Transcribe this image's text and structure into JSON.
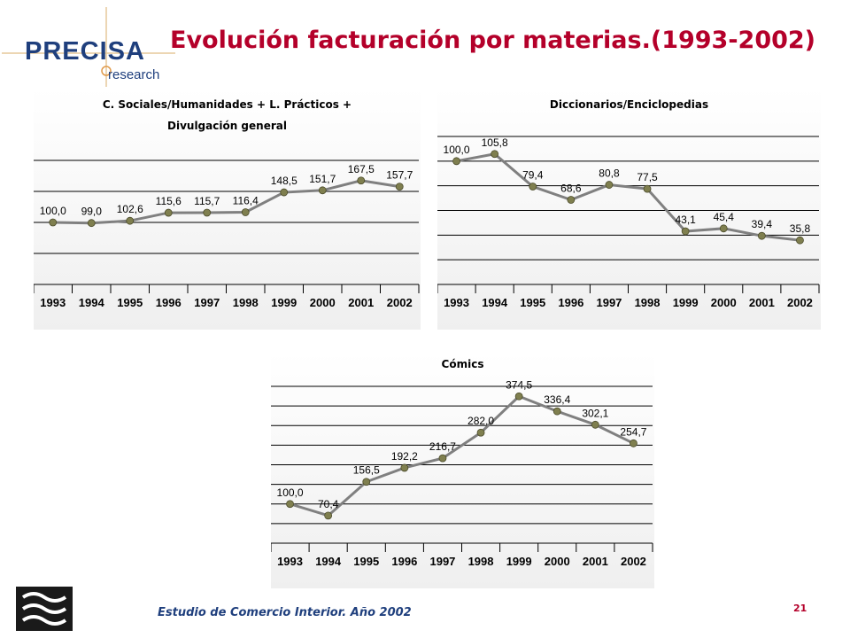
{
  "logo": {
    "name": "PRECISA",
    "sub": "research"
  },
  "slide": {
    "title": "Evolución facturación por materias.(1993-2002)",
    "footer": "Estudio de Comercio Interior. Año 2002",
    "page_number": "21"
  },
  "colors": {
    "title": "#b4002a",
    "brand": "#1f3f7d",
    "line": "#808080",
    "marker": "#7f7f4f"
  },
  "chart_data": [
    {
      "type": "line",
      "title_lines": [
        "C. Sociales/Humanidades + L. Prácticos +",
        "Divulgación general"
      ],
      "categories": [
        "1993",
        "1994",
        "1995",
        "1996",
        "1997",
        "1998",
        "1999",
        "2000",
        "2001",
        "2002"
      ],
      "values": [
        100.0,
        99.0,
        102.6,
        115.6,
        115.7,
        116.4,
        148.5,
        151.7,
        167.5,
        157.7
      ],
      "labels": [
        "100,0",
        "99,0",
        "102,6",
        "115,6",
        "115,7",
        "116,4",
        "148,5",
        "151,7",
        "167,5",
        "157,7"
      ],
      "ylim": [
        0,
        200
      ],
      "grid": true
    },
    {
      "type": "line",
      "title_lines": [
        "Diccionarios/Enciclopedias"
      ],
      "categories": [
        "1993",
        "1994",
        "1995",
        "1996",
        "1997",
        "1998",
        "1999",
        "2000",
        "2001",
        "2002"
      ],
      "values": [
        100.0,
        105.8,
        79.4,
        68.6,
        80.8,
        77.5,
        43.1,
        45.4,
        39.4,
        35.8
      ],
      "labels": [
        "100,0",
        "105,8",
        "79,4",
        "68,6",
        "80,8",
        "77,5",
        "43,1",
        "45,4",
        "39,4",
        "35,8"
      ],
      "ylim": [
        0,
        120
      ],
      "grid": true
    },
    {
      "type": "line",
      "title_lines": [
        "Cómics"
      ],
      "categories": [
        "1993",
        "1994",
        "1995",
        "1996",
        "1997",
        "1998",
        "1999",
        "2000",
        "2001",
        "2002"
      ],
      "values": [
        100.0,
        70.4,
        156.5,
        192.2,
        216.7,
        282.0,
        374.5,
        336.4,
        302.1,
        254.7
      ],
      "labels": [
        "100,0",
        "70,4",
        "156,5",
        "192,2",
        "216,7",
        "282,0",
        "374,5",
        "336,4",
        "302,1",
        "254,7"
      ],
      "ylim": [
        0,
        400
      ],
      "grid": true
    }
  ]
}
